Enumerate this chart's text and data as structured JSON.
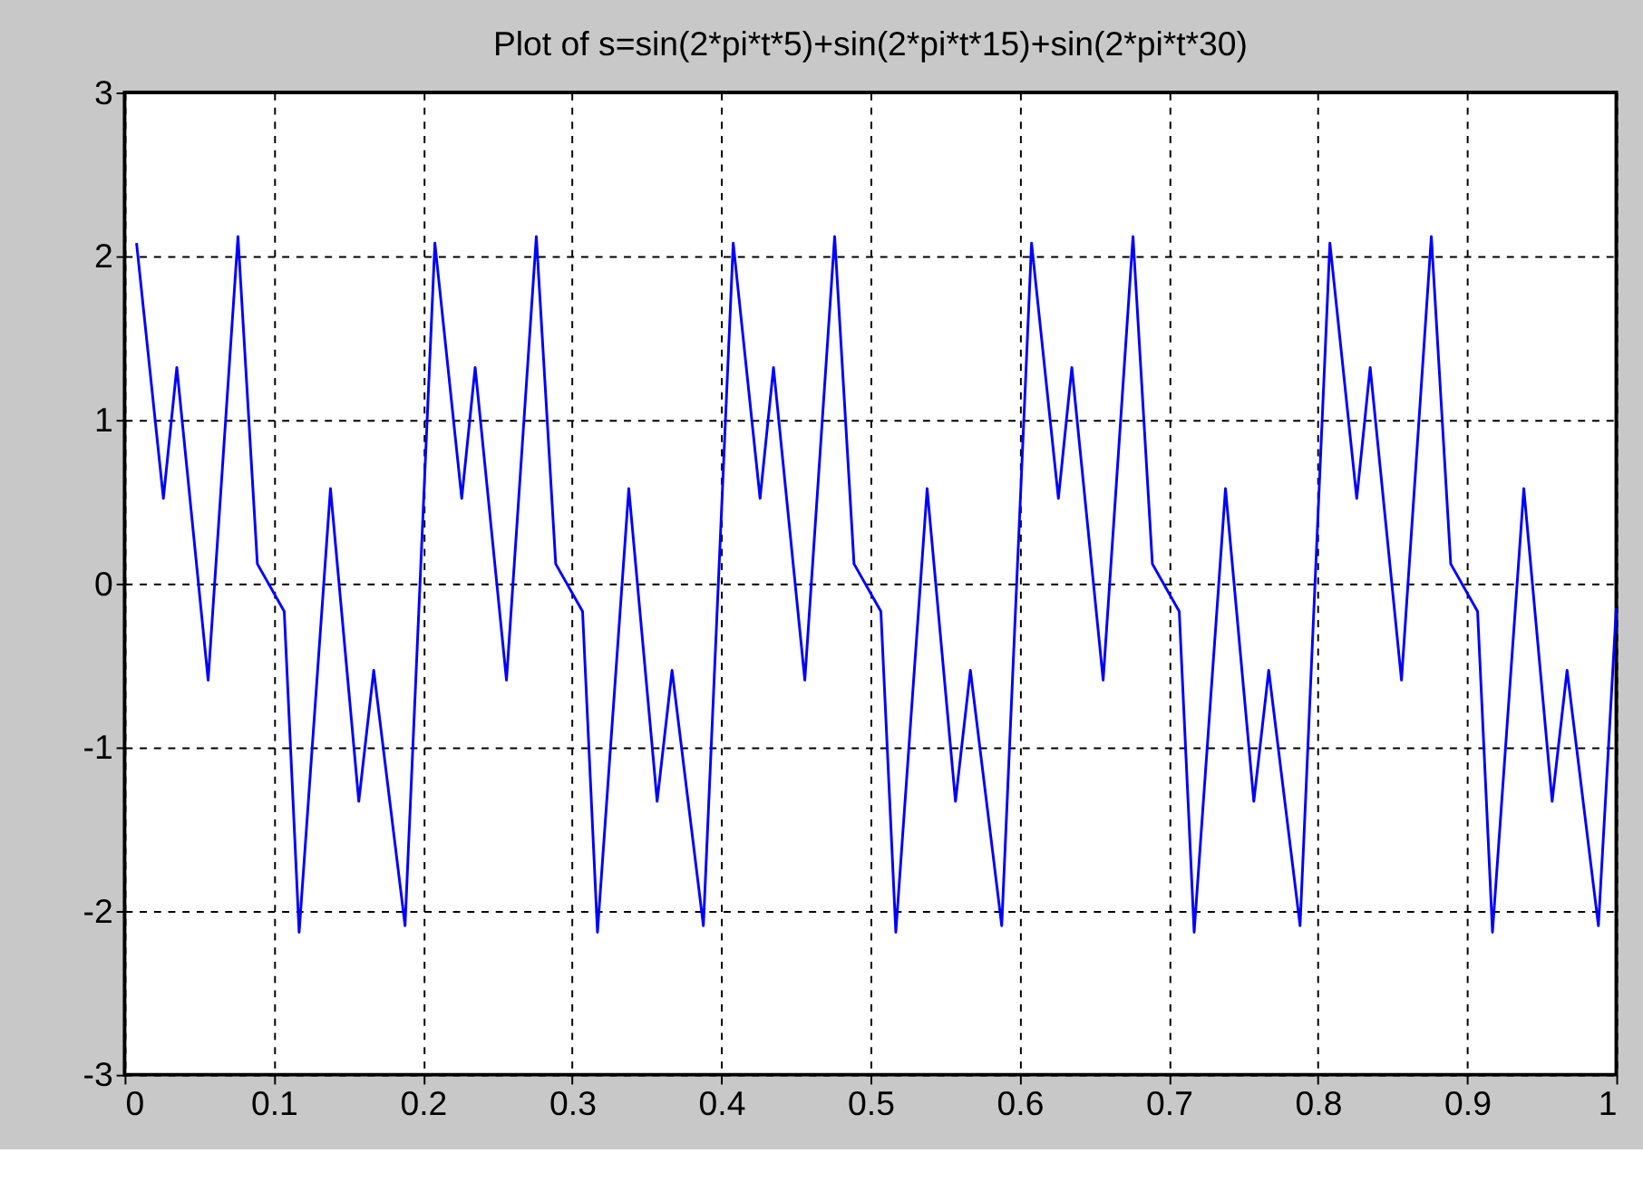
{
  "chart_data": {
    "type": "line",
    "title": "Plot of s=sin(2*pi*t*5)+sin(2*pi*t*15)+sin(2*pi*t*30)",
    "x": [
      0.008,
      0.026,
      0.035,
      0.056,
      0.076,
      0.089,
      0.107,
      0.117,
      0.138,
      0.157,
      0.167,
      0.188,
      0.208,
      0.226,
      0.235,
      0.256,
      0.276,
      0.289,
      0.307,
      0.317,
      0.338,
      0.357,
      0.367,
      0.388,
      0.408,
      0.426,
      0.435,
      0.456,
      0.476,
      0.489,
      0.507,
      0.517,
      0.538,
      0.557,
      0.567,
      0.588,
      0.608,
      0.626,
      0.635,
      0.656,
      0.676,
      0.689,
      0.707,
      0.717,
      0.738,
      0.757,
      0.767,
      0.788,
      0.808,
      0.826,
      0.835,
      0.856,
      0.876,
      0.889,
      0.907,
      0.917,
      0.938,
      0.957,
      0.967,
      0.988,
      1.0
    ],
    "series": [
      {
        "color": "#0000ff",
        "values": [
          2.08,
          0.52,
          1.32,
          -0.59,
          2.12,
          0.12,
          -0.17,
          -2.13,
          0.58,
          -1.33,
          -0.53,
          -2.09,
          2.08,
          0.52,
          1.32,
          -0.59,
          2.12,
          0.12,
          -0.17,
          -2.13,
          0.58,
          -1.33,
          -0.53,
          -2.09,
          2.08,
          0.52,
          1.32,
          -0.59,
          2.12,
          0.12,
          -0.17,
          -2.13,
          0.58,
          -1.33,
          -0.53,
          -2.09,
          2.08,
          0.52,
          1.32,
          -0.59,
          2.12,
          0.12,
          -0.17,
          -2.13,
          0.58,
          -1.33,
          -0.53,
          -2.09,
          2.08,
          0.52,
          1.32,
          -0.59,
          2.12,
          0.12,
          -0.17,
          -2.13,
          0.58,
          -1.33,
          -0.53,
          -2.09,
          -0.15
        ]
      }
    ],
    "xlim": [
      0,
      1
    ],
    "xticks": [
      0,
      0.1,
      0.2,
      0.3,
      0.4,
      0.5,
      0.6,
      0.7,
      0.8,
      0.9,
      1
    ],
    "ylim": [
      -3,
      3
    ],
    "yticks": [
      -3,
      -2,
      -1,
      0,
      1,
      2,
      3
    ],
    "grid": true,
    "line_style": "solid",
    "marker": "none"
  }
}
